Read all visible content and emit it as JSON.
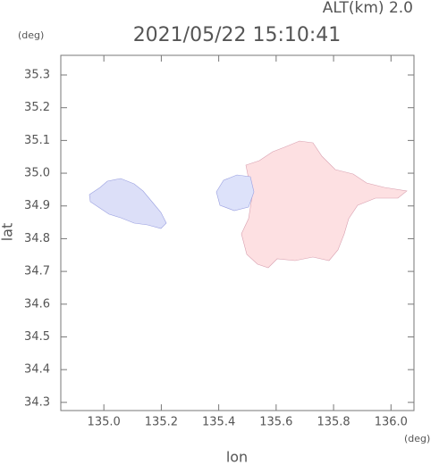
{
  "chart_data": {
    "type": "map",
    "title": "2021/05/22 15:10:41",
    "subtitle": "ALT(km) 2.0",
    "x_label": "lon",
    "y_label": "lat",
    "x_unit": "(deg)",
    "y_unit": "(deg)",
    "xlim": [
      134.85,
      136.08
    ],
    "ylim": [
      34.275,
      35.36
    ],
    "xticks": [
      {
        "value": 135.0,
        "label": "135.0"
      },
      135.2,
      135.4,
      135.6,
      135.8,
      {
        "value": 136.0,
        "label": "136.0"
      }
    ],
    "yticks": [
      34.3,
      34.4,
      34.5,
      34.6,
      34.7,
      34.8,
      34.9,
      {
        "value": 35.0,
        "label": "35.0"
      },
      35.1,
      35.2,
      35.3
    ],
    "grid": false
  }
}
